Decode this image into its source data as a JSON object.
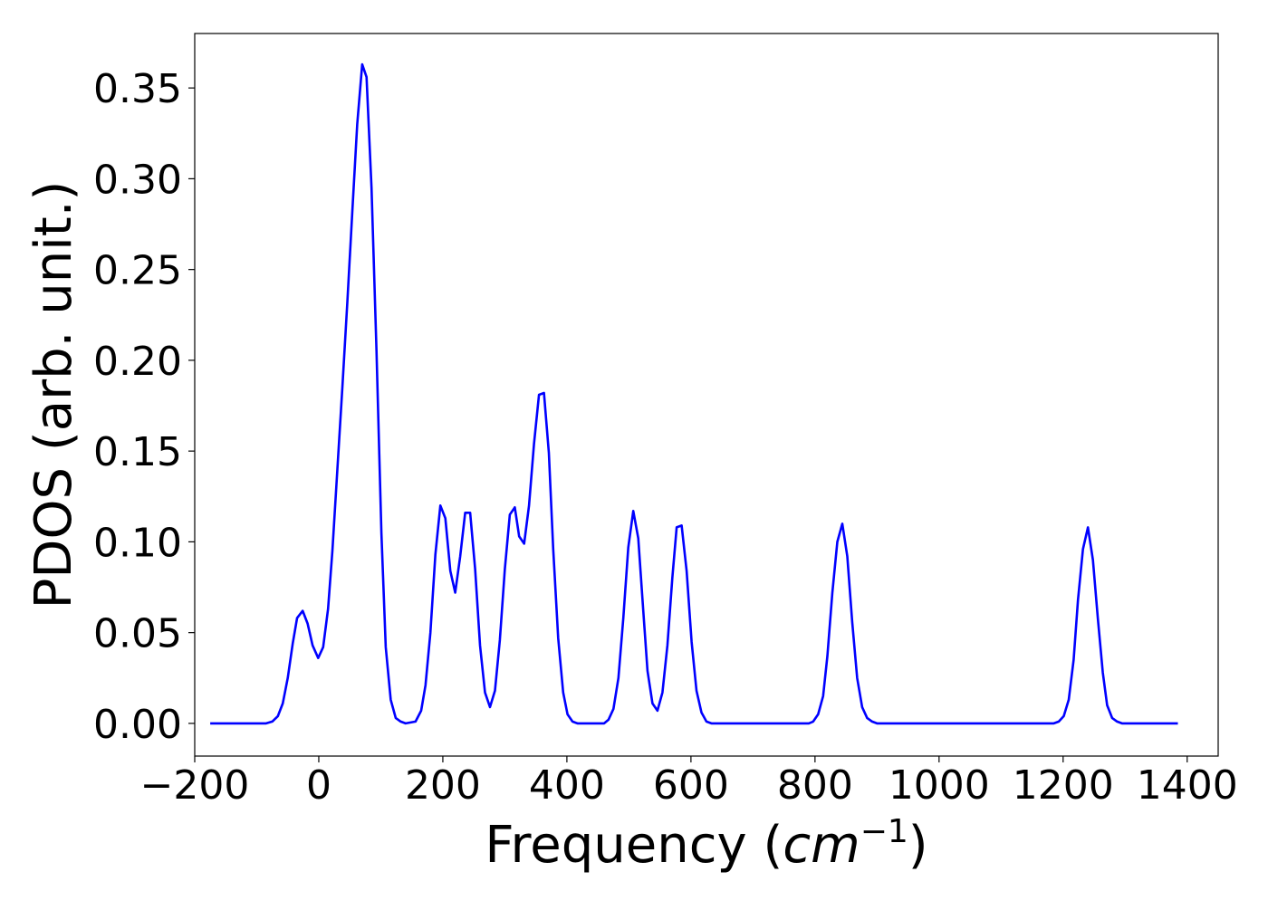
{
  "chart_data": {
    "type": "line",
    "title": "",
    "xlabel": "Frequency",
    "xlabel_unit": {
      "open": "(",
      "base": "cm",
      "exponent": "−1",
      "close": ")"
    },
    "ylabel": "PDOS (arb. unit.)",
    "xlim": [
      -200,
      1450
    ],
    "ylim": [
      -0.018,
      0.38
    ],
    "xticks": [
      -200,
      0,
      200,
      400,
      600,
      800,
      1000,
      1200,
      1400
    ],
    "xtick_labels": [
      "−200",
      "0",
      "200",
      "400",
      "600",
      "800",
      "1000",
      "1200",
      "1400"
    ],
    "yticks": [
      0.0,
      0.05,
      0.1,
      0.15,
      0.2,
      0.25,
      0.3,
      0.35
    ],
    "ytick_labels": [
      "0.00",
      "0.05",
      "0.10",
      "0.15",
      "0.20",
      "0.25",
      "0.30",
      "0.35"
    ],
    "grid": false,
    "legend": "none",
    "series": [
      {
        "color": "#0000ff",
        "x": [
          -175,
          -85,
          -75,
          -66,
          -58,
          -50,
          -42,
          -35,
          -26,
          -18,
          -10,
          -1,
          7,
          15,
          22,
          30,
          38,
          46,
          54,
          62,
          70,
          77,
          85,
          93,
          101,
          108,
          116,
          124,
          132,
          140,
          156,
          165,
          172,
          180,
          188,
          196,
          204,
          212,
          220,
          228,
          236,
          244,
          252,
          260,
          268,
          276,
          284,
          292,
          300,
          308,
          316,
          323,
          331,
          339,
          347,
          355,
          363,
          371,
          378,
          386,
          394,
          401,
          409,
          417,
          425,
          460,
          467,
          475,
          483,
          491,
          499,
          507,
          515,
          523,
          530,
          538,
          546,
          554,
          562,
          570,
          577,
          585,
          593,
          601,
          609,
          617,
          625,
          633,
          640,
          648,
          790,
          797,
          805,
          813,
          820,
          828,
          836,
          844,
          852,
          860,
          868,
          876,
          884,
          892,
          900,
          1185,
          1193,
          1201,
          1209,
          1217,
          1224,
          1232,
          1240,
          1248,
          1256,
          1264,
          1271,
          1279,
          1287,
          1295,
          1305,
          1385
        ],
        "y": [
          0.0,
          0.0,
          0.001,
          0.004,
          0.011,
          0.025,
          0.044,
          0.058,
          0.062,
          0.055,
          0.043,
          0.036,
          0.042,
          0.063,
          0.095,
          0.14,
          0.185,
          0.232,
          0.282,
          0.33,
          0.363,
          0.356,
          0.295,
          0.205,
          0.105,
          0.042,
          0.013,
          0.003,
          0.001,
          0.0,
          0.001,
          0.007,
          0.021,
          0.05,
          0.093,
          0.12,
          0.113,
          0.084,
          0.072,
          0.092,
          0.116,
          0.116,
          0.085,
          0.043,
          0.017,
          0.009,
          0.018,
          0.046,
          0.085,
          0.115,
          0.119,
          0.103,
          0.099,
          0.12,
          0.154,
          0.181,
          0.182,
          0.149,
          0.096,
          0.047,
          0.017,
          0.005,
          0.001,
          0.0,
          0.0,
          0.0,
          0.002,
          0.008,
          0.025,
          0.058,
          0.097,
          0.117,
          0.102,
          0.063,
          0.029,
          0.011,
          0.007,
          0.017,
          0.043,
          0.08,
          0.108,
          0.109,
          0.084,
          0.045,
          0.018,
          0.006,
          0.001,
          0.0,
          0.0,
          0.0,
          0.0,
          0.001,
          0.005,
          0.015,
          0.037,
          0.072,
          0.1,
          0.11,
          0.092,
          0.056,
          0.025,
          0.009,
          0.003,
          0.001,
          0.0,
          0.0,
          0.001,
          0.004,
          0.013,
          0.035,
          0.068,
          0.096,
          0.108,
          0.09,
          0.058,
          0.028,
          0.01,
          0.003,
          0.001,
          0.0,
          0.0,
          0.0
        ]
      }
    ]
  }
}
